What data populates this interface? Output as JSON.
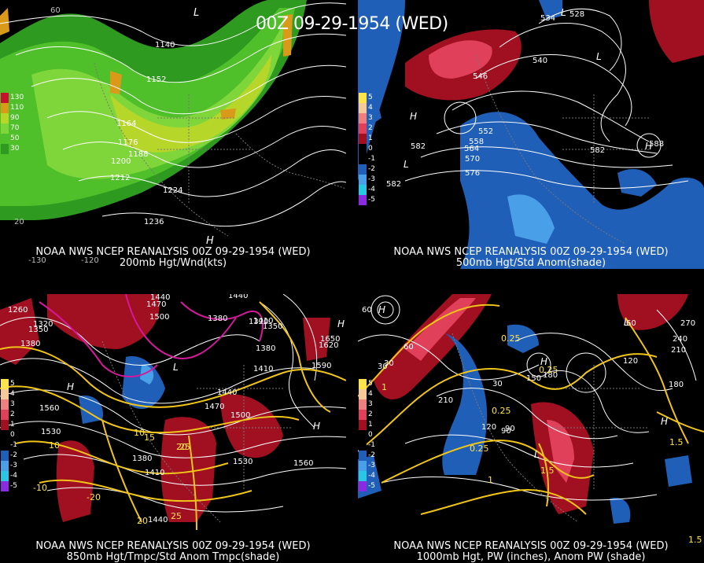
{
  "title": "00Z 09-29-1954 (WED)",
  "panels": [
    {
      "line1": "NOAA NWS NCEP REANALYSIS 00Z 09-29-1954 (WED)",
      "line2": "200mb Hgt/Wnd(kts)",
      "legend": [
        {
          "label": "130",
          "color": "#c8102e"
        },
        {
          "label": "110",
          "color": "#d99a1a"
        },
        {
          "label": "90",
          "color": "#b7d62a"
        },
        {
          "label": "70",
          "color": "#7fd63a"
        },
        {
          "label": "50",
          "color": "#4fbf2a"
        },
        {
          "label": "30",
          "color": "#2e9a1f"
        }
      ],
      "contour_labels": [
        "1140",
        "1152",
        "1164",
        "1176",
        "1188",
        "1200",
        "1212",
        "1224",
        "1236"
      ],
      "grid_labels": [
        "60",
        "-130",
        "-120",
        "20"
      ],
      "marks": [
        "H",
        "L"
      ]
    },
    {
      "line1": "NOAA NWS NCEP REANALYSIS 00Z 09-29-1954 (WED)",
      "line2": "500mb Hgt/Std Anom(shade)",
      "legend": [
        {
          "label": "5",
          "color": "#ffe34a"
        },
        {
          "label": "4",
          "color": "#f6c99a"
        },
        {
          "label": "3",
          "color": "#f08080"
        },
        {
          "label": "2",
          "color": "#e0405a"
        },
        {
          "label": "1",
          "color": "#a01020"
        },
        {
          "label": "0",
          "color": "#000000"
        },
        {
          "label": "-1",
          "color": "#000000"
        },
        {
          "label": "-2",
          "color": "#1f5fb8"
        },
        {
          "label": "-3",
          "color": "#4aa0e8"
        },
        {
          "label": "-4",
          "color": "#29c6e6"
        },
        {
          "label": "-5",
          "color": "#8a2be2"
        }
      ],
      "contour_labels": [
        "528",
        "534",
        "540",
        "546",
        "552",
        "558",
        "564",
        "570",
        "576",
        "582",
        "582",
        "582",
        "588"
      ],
      "marks": [
        "H",
        "L",
        "H",
        "L",
        "L"
      ]
    },
    {
      "line1": "NOAA NWS NCEP REANALYSIS 00Z 09-29-1954 (WED)",
      "line2": "850mb Hgt/Tmpc/Std Anom Tmpc(shade)",
      "legend": [
        {
          "label": "5",
          "color": "#ffe34a"
        },
        {
          "label": "4",
          "color": "#f6c99a"
        },
        {
          "label": "3",
          "color": "#f08080"
        },
        {
          "label": "2",
          "color": "#e0405a"
        },
        {
          "label": "1",
          "color": "#a01020"
        },
        {
          "label": "0",
          "color": "#000000"
        },
        {
          "label": "-1",
          "color": "#000000"
        },
        {
          "label": "-2",
          "color": "#1f5fb8"
        },
        {
          "label": "-3",
          "color": "#4aa0e8"
        },
        {
          "label": "-4",
          "color": "#29c6e6"
        },
        {
          "label": "-5",
          "color": "#8a2be2"
        }
      ],
      "contour_labels": [
        "1260",
        "1320",
        "1350",
        "1380",
        "1440",
        "1470",
        "1500",
        "1440",
        "1380",
        "1410",
        "1320",
        "1350",
        "1380",
        "1410",
        "1440",
        "1470",
        "1500",
        "1530",
        "1560",
        "1590",
        "1620",
        "1650",
        "1530",
        "1560",
        "1410",
        "1440",
        "1380"
      ],
      "temp_labels": [
        "10",
        "15",
        "20",
        "25",
        "-20",
        "-10",
        "10",
        "20",
        "25"
      ],
      "marks": [
        "H",
        "L",
        "H",
        "H"
      ]
    },
    {
      "line1": "NOAA NWS NCEP REANALYSIS 00Z 09-29-1954 (WED)",
      "line2": "1000mb Hgt, PW (inches), Anom PW (shade)",
      "legend": [
        {
          "label": "5",
          "color": "#ffe34a"
        },
        {
          "label": "4",
          "color": "#f6c99a"
        },
        {
          "label": "3",
          "color": "#f08080"
        },
        {
          "label": "2",
          "color": "#e0405a"
        },
        {
          "label": "1",
          "color": "#a01020"
        },
        {
          "label": "0",
          "color": "#000000"
        },
        {
          "label": "-1",
          "color": "#000000"
        },
        {
          "label": "-2",
          "color": "#1f5fb8"
        },
        {
          "label": "-3",
          "color": "#4aa0e8"
        },
        {
          "label": "-4",
          "color": "#29c6e6"
        },
        {
          "label": "-5",
          "color": "#8a2be2"
        }
      ],
      "contour_labels": [
        "60",
        "30",
        "60",
        "30",
        "90",
        "120",
        "150",
        "180",
        "210",
        "240",
        "270",
        "210",
        "180",
        "120",
        "90",
        "60",
        "30"
      ],
      "pw_labels": [
        "0.25",
        "0.25",
        "0.25",
        "0.25",
        "1",
        "1.5",
        "1.5",
        "1.5",
        "1"
      ],
      "marks": [
        "H",
        "H",
        "L",
        "L",
        "H"
      ]
    }
  ]
}
